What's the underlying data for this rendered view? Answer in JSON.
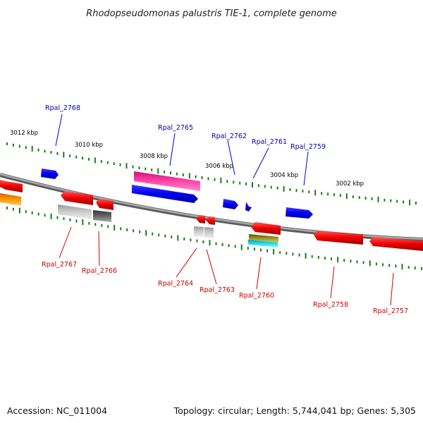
{
  "title": "Rhodopseudomonas palustris TIE-1, complete genome",
  "accession": "Accession: NC_011004",
  "topology": "Topology: circular; Length: 5,744,041 bp; Genes: 5,305",
  "colors": {
    "background": "#ffffff",
    "backbone": "#8a8a8a",
    "tick": "#1c7a1c",
    "label_forward": "#0000aa",
    "label_reverse": "#cc0000"
  },
  "scale_labels": [
    "3012 kbp",
    "3010 kbp",
    "3008 kbp",
    "3006 kbp",
    "3004 kbp",
    "3002 kbp"
  ],
  "labels_forward": [
    "Rpal_2768",
    "Rpal_2765",
    "Rpal_2762",
    "Rpal_2761",
    "Rpal_2759"
  ],
  "labels_reverse": [
    "Rpal_2767",
    "Rpal_2766",
    "Rpal_2764",
    "Rpal_2763",
    "Rpal_2760",
    "Rpal_2758",
    "Rpal_2757"
  ]
}
